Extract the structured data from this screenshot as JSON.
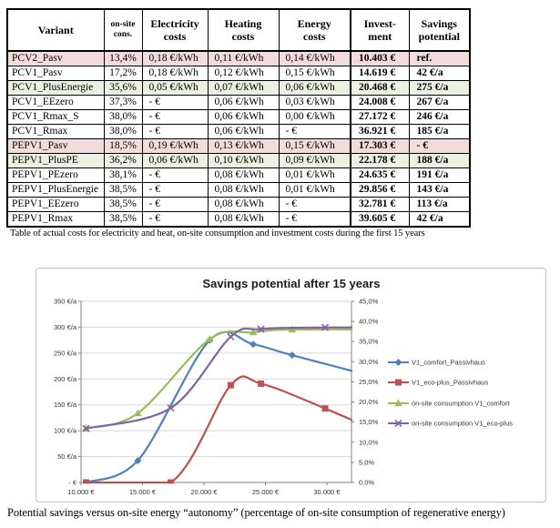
{
  "table": {
    "columns": [
      {
        "label": "Variant"
      },
      {
        "label": "on-site\ncons."
      },
      {
        "label": "Electricity\ncosts"
      },
      {
        "label": "Heating\ncosts"
      },
      {
        "label": "Energy\ncosts"
      },
      {
        "label": "Invest-\nment"
      },
      {
        "label": "Savings\npotential"
      }
    ],
    "highlight_colors": {
      "pink": "#F2DCDB",
      "green": "#EBF1DE",
      "none": "#FFFFFF"
    },
    "rows": [
      {
        "highlight": "pink",
        "cells": [
          "PCV2_Pasv",
          "13,4%",
          "0,18 €/kWh",
          "0,11 €/kWh",
          "0,14 €/kWh",
          "10.403 €",
          "ref."
        ]
      },
      {
        "highlight": "none",
        "cells": [
          "PCV1_Pasv",
          "17,2%",
          "0,18 €/kWh",
          "0,12 €/kWh",
          "0,15 €/kWh",
          "14.619 €",
          "42 €/a"
        ]
      },
      {
        "highlight": "green",
        "cells": [
          "PCV1_PlusEnergie",
          "35,6%",
          "0,05 €/kWh",
          "0,07 €/kWh",
          "0,06 €/kWh",
          "20.468 €",
          "275 €/a"
        ]
      },
      {
        "highlight": "none",
        "cells": [
          "PCV1_EEzero",
          "37,3%",
          "- €",
          "0,06 €/kWh",
          "0,03 €/kWh",
          "24.008 €",
          "267 €/a"
        ]
      },
      {
        "highlight": "none",
        "cells": [
          "PCV1_Rmax_S",
          "38,0%",
          "- €",
          "0,06 €/kWh",
          "0,00 €/kWh",
          "27.172 €",
          "246 €/a"
        ]
      },
      {
        "highlight": "none",
        "cells": [
          "PCV1_Rmax",
          "38,0%",
          "- €",
          "0,06 €/kWh",
          "- €",
          "36.921 €",
          "185 €/a"
        ]
      },
      {
        "highlight": "pink",
        "cells": [
          "PEPV1_Pasv",
          "18,5%",
          "0,19 €/kWh",
          "0,13 €/kWh",
          "0,15 €/kWh",
          "17.303 €",
          "- €"
        ]
      },
      {
        "highlight": "green",
        "cells": [
          "PEPV1_PlusPE",
          "36,2%",
          "0,06 €/kWh",
          "0,10 €/kWh",
          "0,09 €/kWh",
          "22.178 €",
          "188 €/a"
        ]
      },
      {
        "highlight": "none",
        "cells": [
          "PEPV1_PEzero",
          "38,1%",
          "- €",
          "0,08 €/kWh",
          "0,01 €/kWh",
          "24.635 €",
          "191 €/a"
        ]
      },
      {
        "highlight": "none",
        "cells": [
          "PEPV1_PlusEnergie",
          "38,5%",
          "- €",
          "0,08 €/kWh",
          "0,01 €/kWh",
          "29.856 €",
          "143 €/a"
        ]
      },
      {
        "highlight": "none",
        "cells": [
          "PEPV1_EEzero",
          "38,5%",
          "- €",
          "0,08 €/kWh",
          "- €",
          "32.781 €",
          "113 €/a"
        ]
      },
      {
        "highlight": "none",
        "cells": [
          "PEPV1_Rmax",
          "38,5%",
          "- €",
          "0,08 €/kWh",
          "- €",
          "39.605 €",
          "42 €/a"
        ]
      }
    ],
    "caption": "Table of actual costs for electricity and heat, on-site consumption and investment costs during the first 15 years"
  },
  "figure": {
    "caption": "Potential savings versus on-site energy “autonomy” (percentage of on-site consumption of regenerative energy)"
  },
  "chart_data": {
    "type": "line",
    "title": "Savings potential after 15 years",
    "grid": "horizontal",
    "legend_position": "right",
    "x_axis": {
      "min": 10000,
      "max": 32000,
      "ticks": [
        {
          "v": 10000,
          "label": "10.000 €"
        },
        {
          "v": 15000,
          "label": "15.000 €"
        },
        {
          "v": 20000,
          "label": "20.000 €"
        },
        {
          "v": 25000,
          "label": "25.000 €"
        },
        {
          "v": 30000,
          "label": "30.000 €"
        }
      ]
    },
    "y_left": {
      "min": 0,
      "max": 350,
      "ticks": [
        {
          "v": 0,
          "label": "- €"
        },
        {
          "v": 50,
          "label": "50 €/a"
        },
        {
          "v": 100,
          "label": "100 €/a"
        },
        {
          "v": 150,
          "label": "150 €/a"
        },
        {
          "v": 200,
          "label": "200 €/a"
        },
        {
          "v": 250,
          "label": "250 €/a"
        },
        {
          "v": 300,
          "label": "300 €/a"
        },
        {
          "v": 350,
          "label": "350 €/a"
        }
      ]
    },
    "y_right": {
      "min": 0,
      "max": 45,
      "ticks": [
        {
          "v": 0,
          "label": "0,0%"
        },
        {
          "v": 5,
          "label": "5,0%"
        },
        {
          "v": 10,
          "label": "10,0%"
        },
        {
          "v": 15,
          "label": "15,0%"
        },
        {
          "v": 20,
          "label": "20,0%"
        },
        {
          "v": 25,
          "label": "25,0%"
        },
        {
          "v": 30,
          "label": "30,0%"
        },
        {
          "v": 35,
          "label": "35,0%"
        },
        {
          "v": 40,
          "label": "40,0%"
        },
        {
          "v": 45,
          "label": "45,0%"
        }
      ]
    },
    "series": [
      {
        "name": "V1_comfort_Passivhaus",
        "color": "#4F81BD",
        "marker": "diamond",
        "axis": "left",
        "points": [
          [
            10403,
            0
          ],
          [
            14619,
            42
          ],
          [
            20468,
            275
          ],
          [
            24008,
            267
          ],
          [
            27172,
            246
          ],
          [
            36921,
            185
          ]
        ]
      },
      {
        "name": "V1_eco-plus_Passivhaus",
        "color": "#C0504D",
        "marker": "square",
        "axis": "left",
        "points": [
          [
            10403,
            0
          ],
          [
            17303,
            0
          ],
          [
            22178,
            188
          ],
          [
            24635,
            191
          ],
          [
            29856,
            143
          ],
          [
            39605,
            42
          ]
        ]
      },
      {
        "name": "on-site consumption V1_comfort",
        "color": "#9BBB59",
        "marker": "triangle",
        "axis": "right",
        "points": [
          [
            10403,
            13.4
          ],
          [
            14619,
            17.2
          ],
          [
            20468,
            35.6
          ],
          [
            24008,
            37.3
          ],
          [
            27172,
            38.0
          ],
          [
            36921,
            38.0
          ]
        ]
      },
      {
        "name": "on-site consumption V1_eco-plus",
        "color": "#8064A2",
        "marker": "x",
        "axis": "right",
        "points": [
          [
            10403,
            13.4
          ],
          [
            17303,
            18.5
          ],
          [
            22178,
            36.2
          ],
          [
            24635,
            38.1
          ],
          [
            29856,
            38.5
          ],
          [
            39605,
            38.5
          ]
        ]
      }
    ]
  }
}
